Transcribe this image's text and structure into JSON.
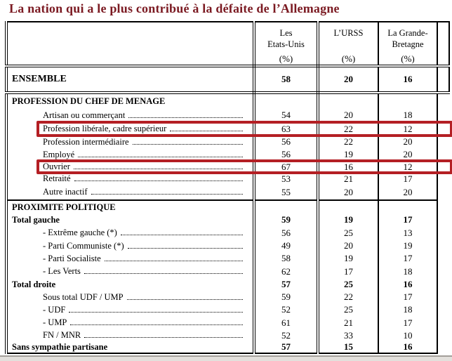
{
  "title": "La nation qui a le plus contribué à la défaite de l’Allemagne",
  "highlight_color": "#b41f24",
  "title_color": "#7b1a22",
  "table": {
    "columns": [
      {
        "label": "Les Etats-Unis",
        "line1": "Les",
        "line2": "Etats-Unis",
        "unit": "(%)"
      },
      {
        "label": "L’URSS",
        "line1": "L’URSS",
        "line2": "",
        "unit": "(%)"
      },
      {
        "label": "La Grande-Bretagne",
        "line1": "La Grande-",
        "line2": "Bretagne",
        "unit": "(%)"
      }
    ],
    "rows": [
      {
        "label": "ENSEMBLE",
        "type": "total",
        "dots": false,
        "highlight": false,
        "values": [
          "58",
          "20",
          "16"
        ]
      },
      {
        "label": "PROFESSION DU CHEF DE MENAGE",
        "type": "section",
        "dots": false,
        "highlight": false,
        "values": [
          "",
          "",
          ""
        ]
      },
      {
        "label": "Artisan ou commerçant",
        "type": "item",
        "dots": true,
        "highlight": false,
        "values": [
          "54",
          "20",
          "18"
        ]
      },
      {
        "label": "Profession libérale, cadre supérieur",
        "type": "item",
        "dots": true,
        "highlight": true,
        "values": [
          "63",
          "22",
          "12"
        ]
      },
      {
        "label": "Profession intermédiaire",
        "type": "item",
        "dots": true,
        "highlight": false,
        "values": [
          "56",
          "22",
          "20"
        ]
      },
      {
        "label": "Employé",
        "type": "item",
        "dots": true,
        "highlight": false,
        "values": [
          "56",
          "19",
          "20"
        ]
      },
      {
        "label": "Ouvrier",
        "type": "item",
        "dots": true,
        "highlight": true,
        "values": [
          "67",
          "16",
          "12"
        ]
      },
      {
        "label": "Retraité",
        "type": "item",
        "dots": true,
        "highlight": false,
        "values": [
          "53",
          "21",
          "17"
        ]
      },
      {
        "label": "Autre inactif",
        "type": "item",
        "dots": true,
        "highlight": false,
        "values": [
          "55",
          "20",
          "20"
        ]
      },
      {
        "label": "PROXIMITE POLITIQUE",
        "type": "section",
        "section_start": true,
        "dots": false,
        "highlight": false,
        "values": [
          "",
          "",
          ""
        ]
      },
      {
        "label": "Total gauche",
        "type": "bold",
        "dots": false,
        "highlight": false,
        "values": [
          "59",
          "19",
          "17"
        ]
      },
      {
        "label": "- Extrême gauche (*)",
        "type": "item",
        "dots": true,
        "highlight": false,
        "values": [
          "56",
          "25",
          "13"
        ]
      },
      {
        "label": "- Parti Communiste (*)",
        "type": "item",
        "dots": true,
        "highlight": false,
        "values": [
          "49",
          "20",
          "19"
        ]
      },
      {
        "label": "- Parti Socialiste",
        "type": "item",
        "dots": true,
        "highlight": false,
        "values": [
          "58",
          "19",
          "17"
        ]
      },
      {
        "label": "- Les Verts",
        "type": "item",
        "dots": true,
        "highlight": false,
        "values": [
          "62",
          "17",
          "18"
        ]
      },
      {
        "label": "Total droite",
        "type": "bold",
        "dots": false,
        "highlight": false,
        "values": [
          "57",
          "25",
          "16"
        ]
      },
      {
        "label": "Sous total UDF / UMP",
        "type": "item",
        "dots": true,
        "highlight": false,
        "values": [
          "59",
          "22",
          "17"
        ]
      },
      {
        "label": "- UDF",
        "type": "item",
        "dots": true,
        "highlight": false,
        "values": [
          "52",
          "25",
          "18"
        ]
      },
      {
        "label": "- UMP",
        "type": "item",
        "dots": true,
        "highlight": false,
        "values": [
          "61",
          "21",
          "17"
        ]
      },
      {
        "label": "FN / MNR",
        "type": "item",
        "dots": true,
        "highlight": false,
        "values": [
          "52",
          "33",
          "10"
        ]
      },
      {
        "label": "Sans sympathie partisane",
        "type": "bold",
        "dots": false,
        "highlight": false,
        "values": [
          "57",
          "15",
          "16"
        ]
      }
    ]
  }
}
